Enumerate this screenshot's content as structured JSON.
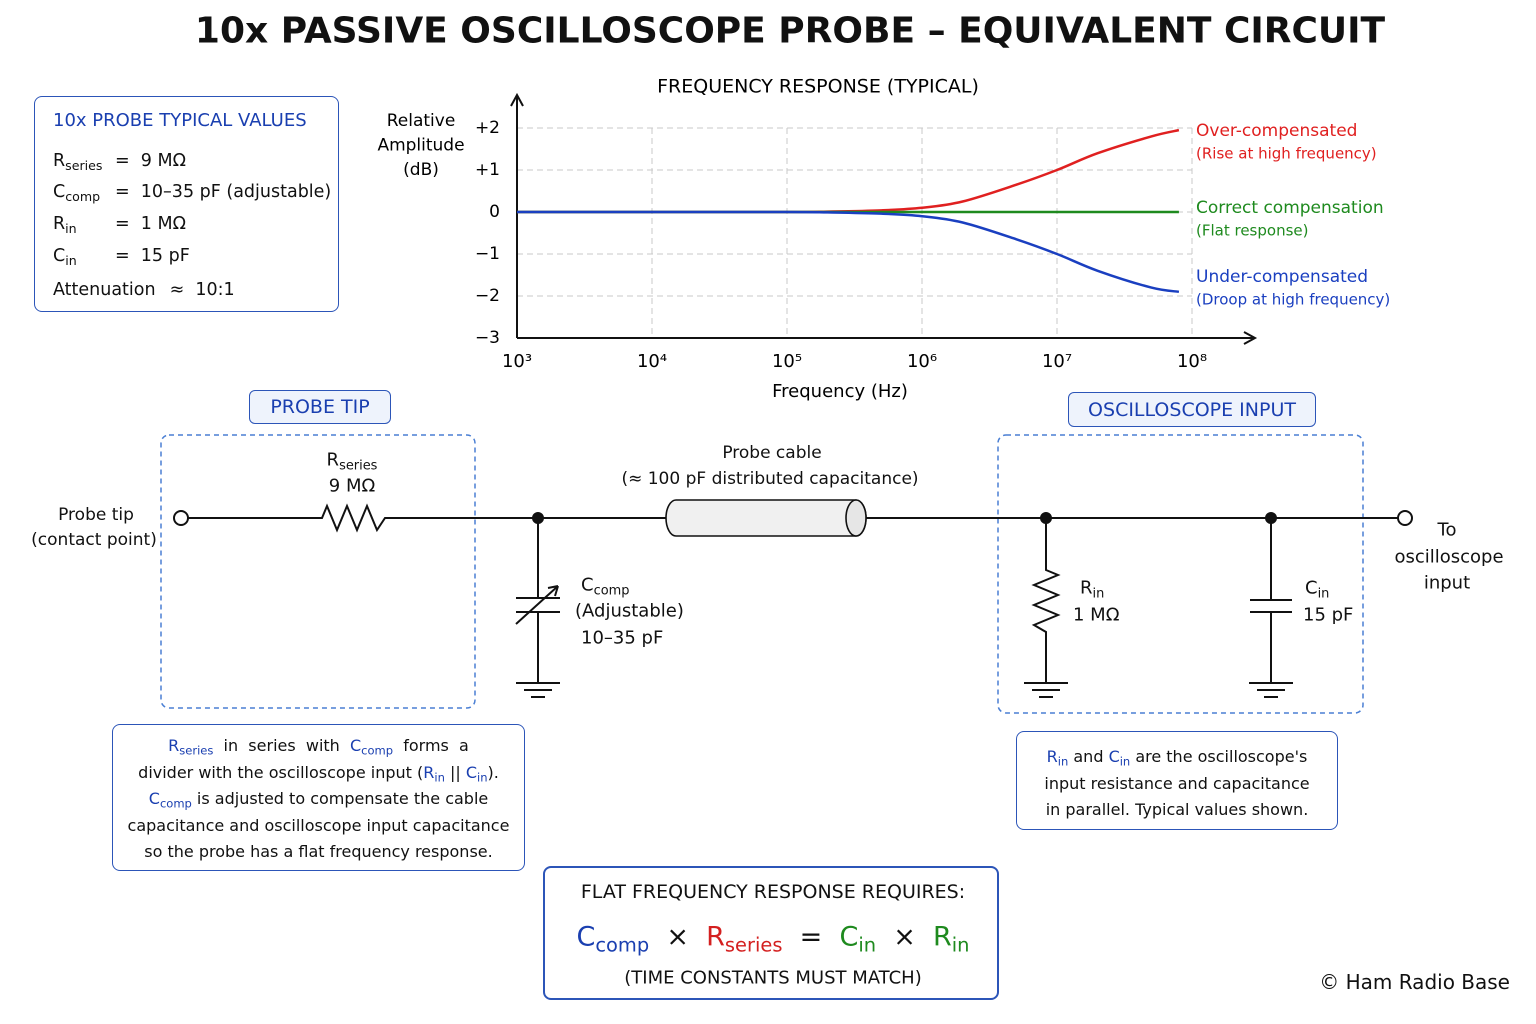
{
  "title": "10x PASSIVE OSCILLOSCOPE PROBE – EQUIVALENT CIRCUIT",
  "typical_values": {
    "title": "10x PROBE TYPICAL VALUES",
    "rows": [
      {
        "symbol": {
          "main": "R",
          "sub": "series"
        },
        "value": "=  9 MΩ"
      },
      {
        "symbol": {
          "main": "C",
          "sub": "comp"
        },
        "value": "=  10–35 pF (adjustable)"
      },
      {
        "symbol": {
          "main": "R",
          "sub": "in"
        },
        "value": "=  1 MΩ"
      },
      {
        "symbol": {
          "main": "C",
          "sub": "in"
        },
        "value": "=  15 pF"
      },
      {
        "symbol": "Attenuation",
        "value": "≈  10:1"
      }
    ]
  },
  "chart_data": {
    "type": "line",
    "title": "FREQUENCY RESPONSE (TYPICAL)",
    "y_label": [
      "Relative",
      "Amplitude",
      "(dB)"
    ],
    "x_label": "Frequency (Hz)",
    "x_scale": "log",
    "grid": true,
    "x": [
      1000,
      10000,
      100000,
      200000,
      500000,
      1000000,
      2000000,
      5000000,
      10000000,
      20000000,
      50000000,
      80000000
    ],
    "xlim": [
      1000,
      100000000
    ],
    "xticks": [
      {
        "value": 1000,
        "label": "10³"
      },
      {
        "value": 10000,
        "label": "10⁴"
      },
      {
        "value": 100000,
        "label": "10⁵"
      },
      {
        "value": 1000000,
        "label": "10⁶"
      },
      {
        "value": 10000000,
        "label": "10⁷"
      },
      {
        "value": 100000000,
        "label": "10⁸"
      }
    ],
    "ylim": [
      -3,
      2
    ],
    "yticks": [
      {
        "value": 2,
        "label": "+2"
      },
      {
        "value": 1,
        "label": "+1"
      },
      0,
      {
        "value": -1,
        "label": "−1"
      },
      {
        "value": -2,
        "label": "−2"
      },
      {
        "value": -3,
        "label": "−3"
      }
    ],
    "series": [
      {
        "name": "Over-compensated",
        "description": "(Rise at high frequency)",
        "color": "#e02020",
        "values": [
          0,
          0,
          0,
          0.01,
          0.04,
          0.1,
          0.25,
          0.65,
          1.0,
          1.4,
          1.8,
          1.95
        ]
      },
      {
        "name": "Correct compensation",
        "description": "(Flat response)",
        "color": "#1e8a1e",
        "values": [
          0,
          0,
          0,
          0,
          0,
          0,
          0,
          0,
          0,
          0,
          0,
          0
        ]
      },
      {
        "name": "Under-compensated",
        "description": "(Droop at high frequency)",
        "color": "#1a3fc0",
        "values": [
          0,
          0,
          0,
          -0.01,
          -0.04,
          -0.1,
          -0.25,
          -0.65,
          -1.0,
          -1.4,
          -1.8,
          -1.9
        ]
      }
    ]
  },
  "circuit": {
    "sections": [
      "PROBE TIP",
      "OSCILLOSCOPE INPUT"
    ],
    "input_label": [
      "Probe tip",
      "(contact point)"
    ],
    "r_series": {
      "symbol": {
        "main": "R",
        "sub": "series"
      },
      "value": "9 MΩ"
    },
    "cable": {
      "name": "Probe cable",
      "note": "(≈ 100 pF distributed capacitance)"
    },
    "c_comp": {
      "symbol": {
        "main": "C",
        "sub": "comp"
      },
      "lines": [
        "(Adjustable)",
        "10–35 pF"
      ]
    },
    "r_in": {
      "symbol": {
        "main": "R",
        "sub": "in"
      },
      "value": "1 MΩ"
    },
    "c_in": {
      "symbol": {
        "main": "C",
        "sub": "in"
      },
      "value": "15 pF"
    },
    "output_label": [
      "To",
      "oscilloscope",
      "input"
    ]
  },
  "notes": {
    "probe": [
      [
        {
          "main": "R",
          "sub": "series"
        },
        "  in  series  with  ",
        {
          "main": "C",
          "sub": "comp"
        },
        "  forms  a"
      ],
      [
        "divider with the oscilloscope input (",
        {
          "main": "R",
          "sub": "in"
        },
        " || ",
        {
          "main": "C",
          "sub": "in"
        },
        ")."
      ],
      [
        {
          "main": "C",
          "sub": "comp"
        },
        " is adjusted to compensate the cable"
      ],
      [
        "capacitance and oscilloscope input capacitance"
      ],
      [
        "so the probe has a flat frequency response."
      ]
    ],
    "scope": [
      [
        {
          "main": "R",
          "sub": "in"
        },
        " and ",
        {
          "main": "C",
          "sub": "in"
        },
        " are the oscilloscope's"
      ],
      [
        "input resistance and capacitance"
      ],
      [
        "in parallel. Typical values shown."
      ]
    ]
  },
  "requirement": {
    "title": "FLAT FREQUENCY RESPONSE REQUIRES:",
    "equation": [
      {
        "main": "C",
        "sub": "comp",
        "color": "#1a3fb0"
      },
      "  ×  ",
      {
        "main": "R",
        "sub": "series",
        "color": "#d42020"
      },
      "  =  ",
      {
        "main": "C",
        "sub": "in",
        "color": "#1e8a1e"
      },
      "  ×  ",
      {
        "main": "R",
        "sub": "in",
        "color": "#1e8a1e"
      }
    ],
    "footnote": "(TIME CONSTANTS MUST MATCH)"
  },
  "credit": "© Ham Radio Base"
}
